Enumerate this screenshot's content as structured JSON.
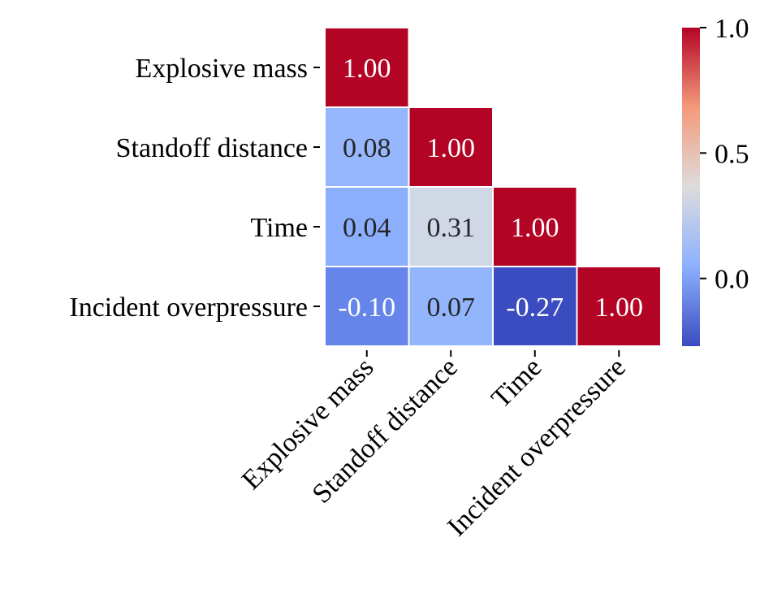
{
  "chart_data": {
    "type": "heatmap",
    "variant": "lower-triangle correlation matrix",
    "variables": [
      "Explosive mass",
      "Standoff distance",
      "Time",
      "Incident overpressure"
    ],
    "x_tick_labels": [
      "Explosive mass",
      "Standoff distance",
      "Time",
      "Incident overpressure"
    ],
    "y_tick_labels": [
      "Explosive mass",
      "Standoff distance",
      "Time",
      "Incident overpressure"
    ],
    "matrix": [
      [
        1.0,
        null,
        null,
        null
      ],
      [
        0.08,
        1.0,
        null,
        null
      ],
      [
        0.04,
        0.31,
        1.0,
        null
      ],
      [
        -0.1,
        0.07,
        -0.27,
        1.0
      ]
    ],
    "value_format": "2 decimals",
    "colormap": "coolwarm",
    "color_range": [
      -0.27,
      1.0
    ],
    "colorbar": {
      "ticks": [
        0.0,
        0.5,
        1.0
      ],
      "tick_labels": [
        "0.0",
        "0.5",
        "1.0"
      ]
    },
    "colors": {
      "min": "#3b4cc0",
      "mid": "#dddcdc",
      "max": "#b40426",
      "cell_border": "#ffffff",
      "text_dark": "#262626",
      "text_light": "#ffffff"
    }
  }
}
